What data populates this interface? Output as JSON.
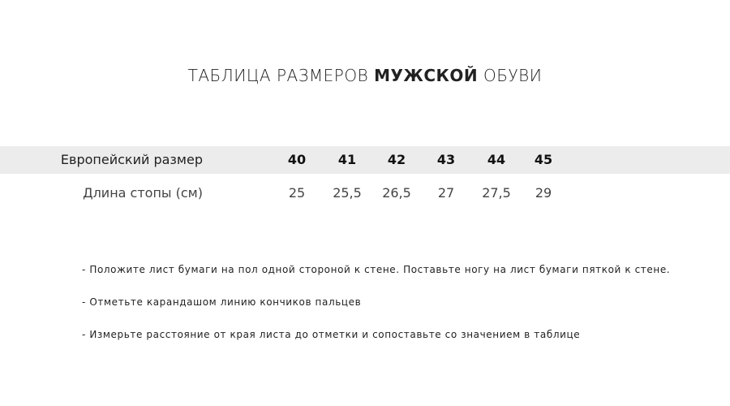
{
  "title": {
    "prefix": "ТАБЛИЦА РАЗМЕРОВ",
    "bold": "МУЖСКОЙ",
    "suffix": "ОБУВИ"
  },
  "table": {
    "rows": [
      {
        "label": "Европейский размер",
        "values": [
          "40",
          "41",
          "42",
          "43",
          "44",
          "45"
        ]
      },
      {
        "label": "Длина стопы (см)",
        "values": [
          "25",
          "25,5",
          "26,5",
          "27",
          "27,5",
          "29"
        ]
      }
    ],
    "header_band_color": "#ececec"
  },
  "instructions": [
    "- Положите лист бумаги на пол одной стороной к стене. Поставьте ногу на лист бумаги пяткой к стене.",
    "- Отметьте карандашом линию кончиков пальцев",
    "- Измерьте расстояние от края листа до отметки и сопоставьте со значением в таблице"
  ]
}
